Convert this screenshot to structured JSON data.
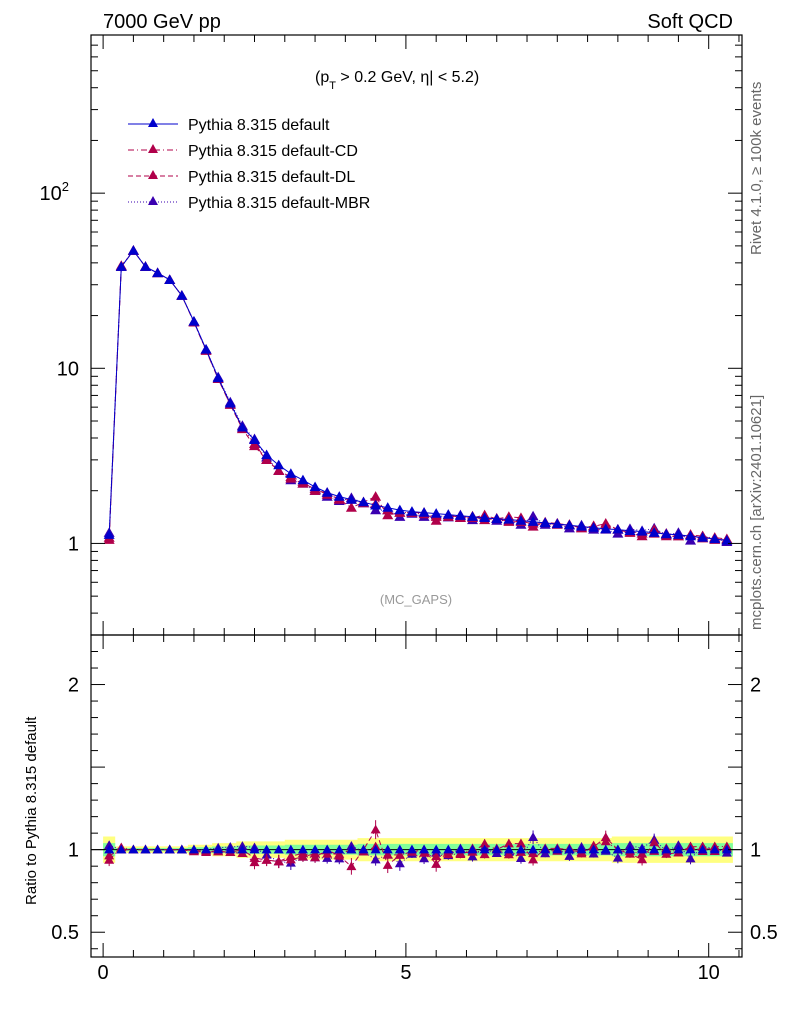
{
  "header": {
    "left": "7000 GeV pp",
    "right": "Soft QCD"
  },
  "cut_label": {
    "pre": "(p",
    "sub": "T",
    "mid": " > 0.2 GeV, ",
    "eta": "η",
    "post": "| < 5.2)"
  },
  "analysis_label": "(MC_GAPS)",
  "side_labels": {
    "rivet": "Rivet 4.1.0, ≥ 100k events",
    "mcplots": "mcplots.cern.ch [arXiv:2401.10621]"
  },
  "colors": {
    "default": "#0000cc",
    "cd": "#b0004a",
    "dl": "#b0004a",
    "mbr": "#3a00b0",
    "band_yellow": "#ffff80",
    "band_green": "#80ff9a"
  },
  "chart_data": [
    {
      "type": "line",
      "panel": "main",
      "yscale": "log",
      "xlim": [
        -0.2,
        10.55
      ],
      "ylim": [
        0.3,
        800
      ],
      "yticks": [
        {
          "value": 1,
          "label": "1"
        },
        {
          "value": 10,
          "label": "10"
        },
        {
          "value": 100,
          "label": "10",
          "sup": "2"
        }
      ],
      "x": [
        0.1,
        0.3,
        0.5,
        0.7,
        0.9,
        1.1,
        1.3,
        1.5,
        1.7,
        1.9,
        2.1,
        2.3,
        2.5,
        2.7,
        2.9,
        3.1,
        3.3,
        3.5,
        3.7,
        3.9,
        4.1,
        4.3,
        4.5,
        4.7,
        4.9,
        5.1,
        5.3,
        5.5,
        5.7,
        5.9,
        6.1,
        6.3,
        6.5,
        6.7,
        6.9,
        7.1,
        7.3,
        7.5,
        7.7,
        7.9,
        8.1,
        8.3,
        8.5,
        8.7,
        8.9,
        9.1,
        9.3,
        9.5,
        9.7,
        9.9,
        10.1,
        10.3
      ],
      "series": [
        {
          "name": "Pythia 8.315 default",
          "key": "default",
          "style": "solid",
          "values": [
            1.12,
            38,
            47,
            38,
            35,
            32,
            26,
            18.5,
            12.8,
            8.8,
            6.3,
            4.6,
            3.9,
            3.2,
            2.8,
            2.5,
            2.3,
            2.1,
            1.95,
            1.85,
            1.78,
            1.72,
            1.65,
            1.6,
            1.55,
            1.52,
            1.5,
            1.48,
            1.46,
            1.44,
            1.42,
            1.4,
            1.38,
            1.37,
            1.35,
            1.33,
            1.31,
            1.29,
            1.27,
            1.25,
            1.23,
            1.21,
            1.2,
            1.18,
            1.17,
            1.15,
            1.13,
            1.12,
            1.1,
            1.08,
            1.06,
            1.04
          ]
        },
        {
          "name": "Pythia 8.315 default-CD",
          "key": "cd",
          "style": "dashdot",
          "values": [
            1.05,
            38.5,
            47,
            38,
            35,
            32,
            26,
            18.3,
            12.6,
            8.7,
            6.2,
            4.6,
            3.7,
            3.0,
            2.6,
            2.35,
            2.2,
            2.05,
            1.9,
            1.8,
            1.78,
            1.7,
            1.68,
            1.55,
            1.5,
            1.5,
            1.47,
            1.42,
            1.42,
            1.4,
            1.43,
            1.36,
            1.39,
            1.33,
            1.33,
            1.3,
            1.31,
            1.28,
            1.28,
            1.22,
            1.26,
            1.27,
            1.2,
            1.17,
            1.14,
            1.14,
            1.14,
            1.1,
            1.12,
            1.07,
            1.08,
            1.06
          ]
        },
        {
          "name": "Pythia 8.315 default-DL",
          "key": "dl",
          "style": "dashed",
          "values": [
            1.08,
            38,
            47,
            38,
            35,
            32,
            26,
            18.4,
            12.7,
            8.7,
            6.2,
            4.5,
            3.6,
            3.0,
            2.6,
            2.4,
            2.25,
            2.0,
            1.95,
            1.78,
            1.6,
            1.72,
            1.85,
            1.45,
            1.5,
            1.5,
            1.5,
            1.35,
            1.45,
            1.41,
            1.4,
            1.45,
            1.38,
            1.42,
            1.4,
            1.25,
            1.32,
            1.3,
            1.27,
            1.23,
            1.25,
            1.3,
            1.2,
            1.15,
            1.1,
            1.2,
            1.1,
            1.1,
            1.12,
            1.1,
            1.05,
            1.05
          ]
        },
        {
          "name": "Pythia 8.315 default-MBR",
          "key": "mbr",
          "style": "dotted",
          "values": [
            1.15,
            38,
            47,
            38,
            35,
            32,
            26,
            18.5,
            12.8,
            8.9,
            6.4,
            4.7,
            3.95,
            3.1,
            2.6,
            2.3,
            2.2,
            2.0,
            1.85,
            1.75,
            1.82,
            1.7,
            1.55,
            1.55,
            1.42,
            1.48,
            1.42,
            1.45,
            1.41,
            1.45,
            1.36,
            1.42,
            1.35,
            1.35,
            1.28,
            1.43,
            1.28,
            1.3,
            1.22,
            1.27,
            1.2,
            1.2,
            1.14,
            1.21,
            1.18,
            1.22,
            1.12,
            1.15,
            1.04,
            1.1,
            1.07,
            1.02
          ]
        }
      ]
    },
    {
      "type": "line",
      "panel": "ratio",
      "ylabel": "Ratio to Pythia 8.315 default",
      "xlim": [
        -0.2,
        10.55
      ],
      "ylim": [
        0.35,
        2.3
      ],
      "xticks": [
        0,
        5,
        10
      ],
      "yticks": [
        0.5,
        1,
        2
      ],
      "bands": {
        "yellow_halfwidth": [
          0.08,
          0.02,
          0.02,
          0.02,
          0.02,
          0.02,
          0.02,
          0.03,
          0.03,
          0.04,
          0.04,
          0.05,
          0.05,
          0.05,
          0.05,
          0.06,
          0.06,
          0.06,
          0.06,
          0.06,
          0.06,
          0.07,
          0.07,
          0.07,
          0.07,
          0.07,
          0.07,
          0.07,
          0.07,
          0.07,
          0.07,
          0.07,
          0.07,
          0.07,
          0.07,
          0.07,
          0.07,
          0.07,
          0.07,
          0.07,
          0.07,
          0.07,
          0.08,
          0.08,
          0.08,
          0.08,
          0.08,
          0.08,
          0.08,
          0.08,
          0.08,
          0.08
        ],
        "green_halfwidth": [
          0.04,
          0.01,
          0.01,
          0.01,
          0.01,
          0.01,
          0.01,
          0.015,
          0.015,
          0.02,
          0.02,
          0.025,
          0.025,
          0.025,
          0.025,
          0.03,
          0.03,
          0.03,
          0.03,
          0.03,
          0.03,
          0.035,
          0.035,
          0.035,
          0.035,
          0.035,
          0.035,
          0.035,
          0.035,
          0.035,
          0.035,
          0.035,
          0.035,
          0.035,
          0.035,
          0.035,
          0.035,
          0.035,
          0.035,
          0.035,
          0.035,
          0.035,
          0.04,
          0.04,
          0.04,
          0.04,
          0.04,
          0.04,
          0.04,
          0.04,
          0.04,
          0.04
        ]
      }
    }
  ]
}
